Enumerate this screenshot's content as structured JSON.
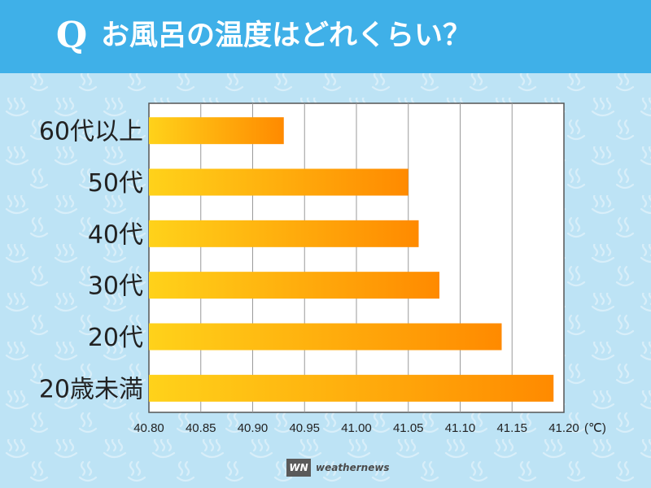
{
  "header": {
    "q_mark": "Q",
    "title": "お風呂の温度はどれくらい？"
  },
  "colors": {
    "title_bar": "#3fb0e8",
    "background": "#bde3f5",
    "bar_start": "#ffd21a",
    "bar_end": "#ff8a00"
  },
  "chart_data": {
    "type": "bar",
    "orientation": "horizontal",
    "categories": [
      "60代以上",
      "50代",
      "40代",
      "30代",
      "20代",
      "20歳未満"
    ],
    "values": [
      40.93,
      41.05,
      41.06,
      41.08,
      41.14,
      41.19
    ],
    "xlim": [
      40.8,
      41.2
    ],
    "xticks": [
      "40.80",
      "40.85",
      "40.90",
      "40.95",
      "41.00",
      "41.05",
      "41.10",
      "41.15",
      "41.20"
    ],
    "x_unit": "(℃)",
    "grid": true
  },
  "footer": {
    "logo_mark": "WN",
    "brand": "weathernews"
  }
}
